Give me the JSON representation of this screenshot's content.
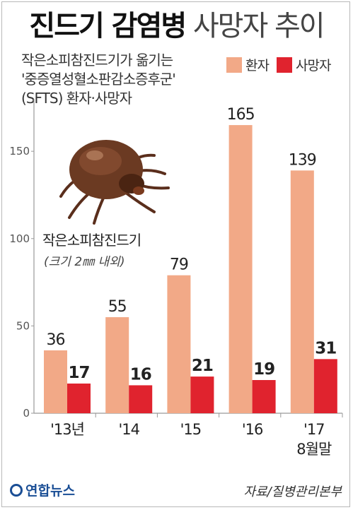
{
  "title_bold": "진드기 감염병",
  "title_light": "사망자 추이",
  "subtitle": [
    "작은소피참진드기가 옮기는",
    "'중증열성혈소판감소증후군'",
    "(SFTS) 환자·사망자"
  ],
  "tick_label": "작은소피참진드기",
  "tick_size": "(크기 2㎜ 내외)",
  "logo": "연합뉴스",
  "source": "자료/질병관리본부",
  "colors": {
    "patients": "#f2a987",
    "deaths": "#e0232e",
    "axis": "#999999"
  },
  "chart_data": {
    "type": "bar",
    "categories": [
      "'13년",
      "'14",
      "'15",
      "'16",
      "'17"
    ],
    "category_sublabels": [
      "",
      "",
      "",
      "",
      "8월말"
    ],
    "yticks": [
      0,
      50,
      100,
      150
    ],
    "ylim": [
      0,
      180
    ],
    "series": [
      {
        "name": "환자",
        "values": [
          36,
          55,
          79,
          165,
          139
        ]
      },
      {
        "name": "사망자",
        "values": [
          17,
          16,
          21,
          19,
          31
        ]
      }
    ]
  }
}
